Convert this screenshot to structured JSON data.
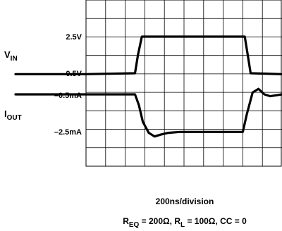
{
  "chart_data": {
    "type": "line",
    "title": "",
    "grid": true,
    "x_axis": {
      "caption": "200ns/division",
      "xlim": [
        0,
        10
      ],
      "unit_per_division": "200ns"
    },
    "conditions": {
      "prefix_1": "R",
      "sub_1": "EQ",
      "text_1": " = 200Ω, ",
      "prefix_2": "R",
      "sub_2": "L",
      "text_2": " = 100Ω, CC = 0"
    },
    "series": [
      {
        "name_main": "V",
        "name_sub": "IN",
        "scale_labels": [
          "2.5V",
          "0.5V"
        ],
        "scale_values": [
          2.5,
          0.5
        ],
        "x": [
          0,
          2.5,
          2.65,
          2.85,
          8.1,
          8.25,
          8.4,
          10
        ],
        "y": [
          0.45,
          0.5,
          1.5,
          2.5,
          2.5,
          1.5,
          0.5,
          0.45
        ]
      },
      {
        "name_main": "I",
        "name_sub": "OUT",
        "scale_labels": [
          "–0.5mA",
          "–2.5mA"
        ],
        "scale_values": [
          -0.5,
          -2.5
        ],
        "x": [
          0,
          2.5,
          2.7,
          2.9,
          3.2,
          3.5,
          3.8,
          4.2,
          4.8,
          8.0,
          8.2,
          8.5,
          8.8,
          9.1,
          9.4,
          9.7,
          10
        ],
        "y": [
          -0.5,
          -0.5,
          -1.1,
          -2.0,
          -2.6,
          -2.8,
          -2.7,
          -2.6,
          -2.55,
          -2.55,
          -1.6,
          -0.4,
          -0.2,
          -0.5,
          -0.6,
          -0.55,
          -0.5
        ]
      }
    ]
  }
}
